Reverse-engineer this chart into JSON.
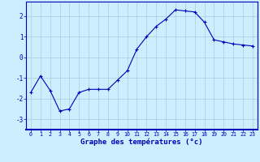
{
  "x": [
    0,
    1,
    2,
    3,
    4,
    5,
    6,
    7,
    8,
    9,
    10,
    11,
    12,
    13,
    14,
    15,
    16,
    17,
    18,
    19,
    20,
    21,
    22,
    23
  ],
  "y": [
    -1.7,
    -0.9,
    -1.6,
    -2.6,
    -2.5,
    -1.7,
    -1.55,
    -1.55,
    -1.55,
    -1.1,
    -0.65,
    0.4,
    1.0,
    1.5,
    1.85,
    2.3,
    2.25,
    2.2,
    1.7,
    0.85,
    0.75,
    0.65,
    0.6,
    0.55
  ],
  "line_color": "#0000bb",
  "marker": "+",
  "marker_size": 3,
  "marker_lw": 0.8,
  "xlabel": "Graphe des températures (°c)",
  "ylim": [
    -3.5,
    2.7
  ],
  "xlim": [
    -0.5,
    23.5
  ],
  "yticks": [
    -3,
    -2,
    -1,
    0,
    1,
    2
  ],
  "xticks": [
    0,
    1,
    2,
    3,
    4,
    5,
    6,
    7,
    8,
    9,
    10,
    11,
    12,
    13,
    14,
    15,
    16,
    17,
    18,
    19,
    20,
    21,
    22,
    23
  ],
  "bg_color": "#cceeff",
  "grid_color": "#aaccdd",
  "axis_color": "#0000bb",
  "label_color": "#0000bb",
  "tick_color": "#0000bb",
  "xlabel_fontsize": 6.5,
  "ytick_fontsize": 5.5,
  "xtick_fontsize": 4.8
}
